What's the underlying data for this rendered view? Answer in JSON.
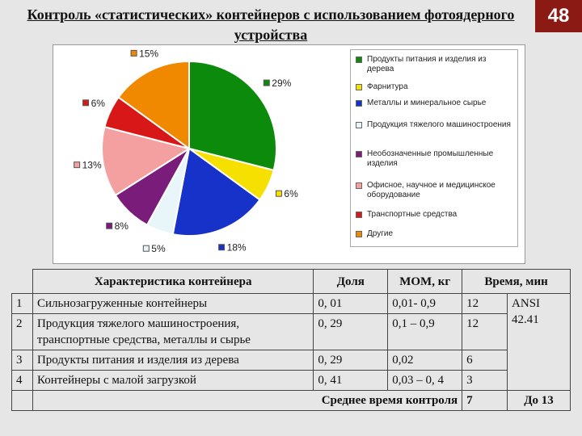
{
  "title": "Контроль «статистических» контейнеров с использованием фотоядерного устройства",
  "page_number": "48",
  "chart_data": {
    "type": "pie",
    "slices": [
      {
        "label": "Продукты питания и изделия из дерева",
        "value": 29,
        "text": "29%",
        "color": "#0b8a0b"
      },
      {
        "label": "Фарнитура",
        "value": 6,
        "text": "6%",
        "color": "#f5e000"
      },
      {
        "label": "Металлы и минеральное сырье",
        "value": 18,
        "text": "18%",
        "color": "#1632c8"
      },
      {
        "label": "Продукция тяжелого машиностроения",
        "value": 5,
        "text": "5%",
        "color": "#e8f6fa"
      },
      {
        "label": "Необозначенные промышленные изделия",
        "value": 8,
        "text": "8%",
        "color": "#7a1c7a"
      },
      {
        "label": "Офисное, научное и медицинское оборудование",
        "value": 13,
        "text": "13%",
        "color": "#f4a0a0"
      },
      {
        "label": "Транспортные средства",
        "value": 6,
        "text": "6%",
        "color": "#d81818"
      },
      {
        "label": "Другие",
        "value": 15,
        "text": "15%",
        "color": "#f08800"
      }
    ]
  },
  "table": {
    "headers": [
      "Характеристика контейнера",
      "Доля",
      "МОМ, кг",
      "Время, мин"
    ],
    "rows": [
      {
        "n": "1",
        "desc": "Сильнозагруженные контейнеры",
        "share": "0, 01",
        "mom": "0,01- 0,9",
        "time": "12"
      },
      {
        "n": "2",
        "desc": "Продукция тяжелого машиностроения, транспортные средства, металлы и сырье",
        "share": "0, 29",
        "mom": "0,1 – 0,9",
        "time": "12"
      },
      {
        "n": "3",
        "desc": "Продукты питания и изделия из дерева",
        "share": "0, 29",
        "mom": "0,02",
        "time": "6"
      },
      {
        "n": "4",
        "desc": "Контейнеры с малой загрузкой",
        "share": "0, 41",
        "mom": "0,03 – 0, 4",
        "time": "3"
      }
    ],
    "standard": "ANSI 42.41",
    "avg_label": "Среднее время контроля",
    "avg_value": "7",
    "total_value": "До 13"
  },
  "legend": [
    {
      "label": "Продукты питания и изделия из дерева",
      "color": "#0b8a0b"
    },
    {
      "label": "Фарнитура",
      "color": "#f5e000"
    },
    {
      "label": "Металлы и минеральное сырье",
      "color": "#1632c8"
    },
    {
      "label": "Продукция тяжелого машиностроения",
      "color": "#e8f6fa"
    },
    {
      "label": "Необозначенные промышленные изделия",
      "color": "#7a1c7a"
    },
    {
      "label": "Офисное, научное и медицинское оборудование",
      "color": "#f4a0a0"
    },
    {
      "label": "Транспортные средства",
      "color": "#d81818"
    },
    {
      "label": "Другие",
      "color": "#f08800"
    }
  ]
}
